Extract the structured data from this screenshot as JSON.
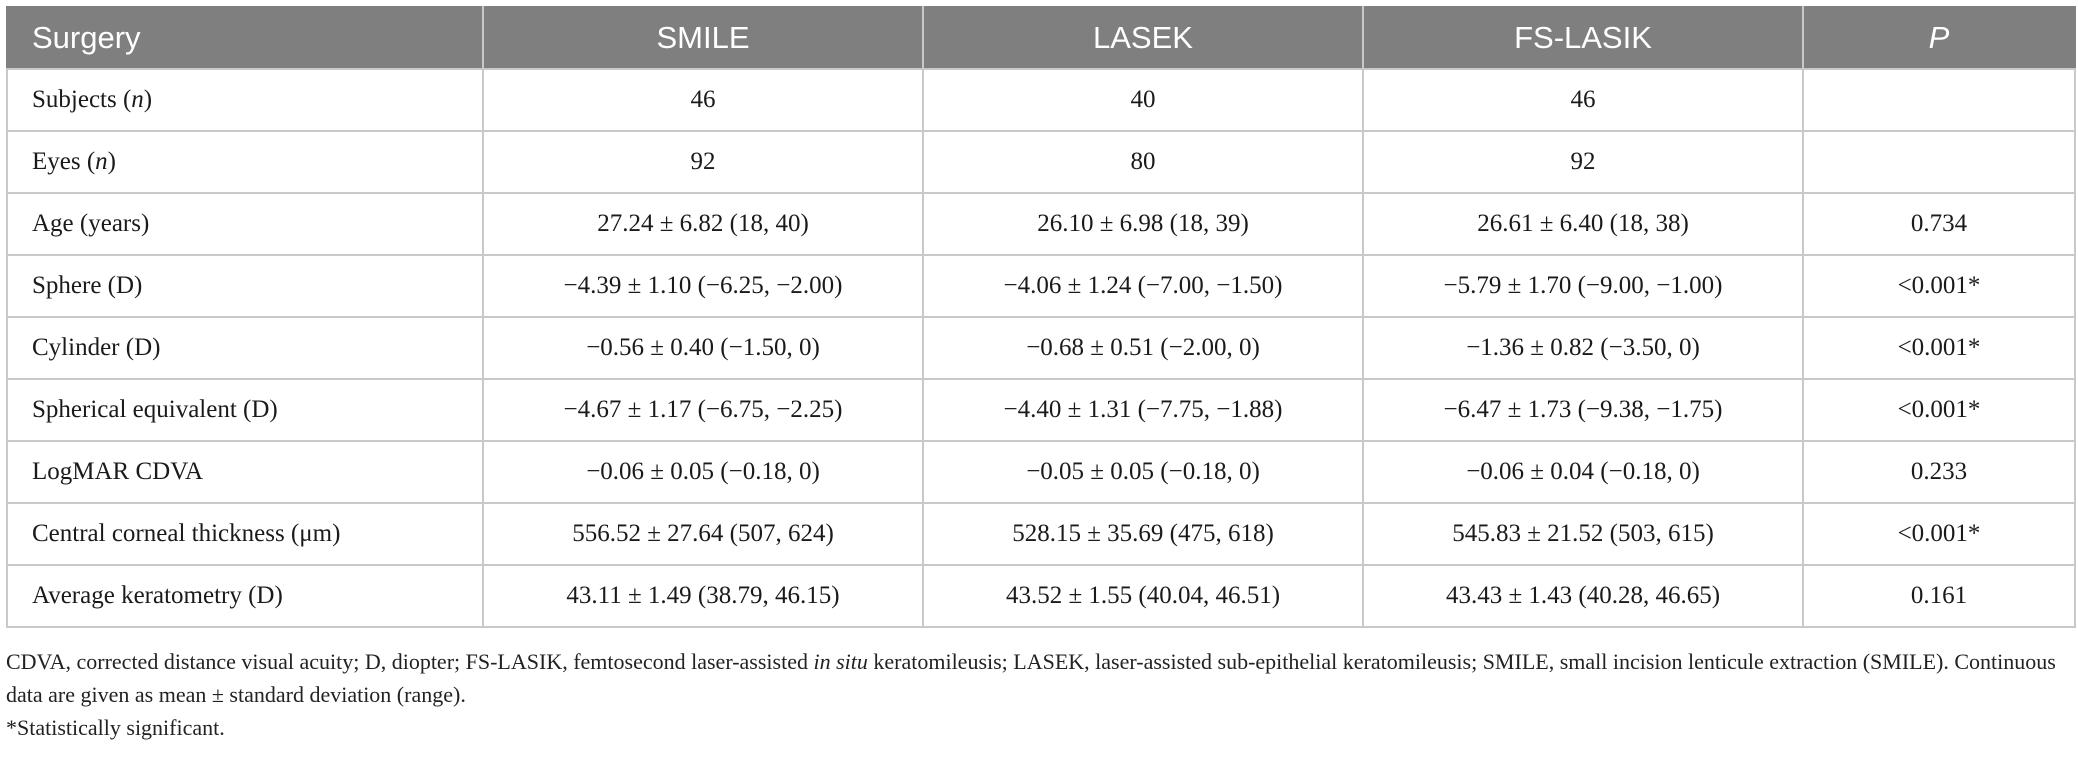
{
  "table": {
    "headers": [
      "Surgery",
      "SMILE",
      "LASEK",
      "FS-LASIK",
      "P"
    ],
    "rows": [
      {
        "label_main": "Subjects (",
        "label_italic": "n",
        "label_tail": ")",
        "cells": [
          "46",
          "40",
          "46",
          ""
        ]
      },
      {
        "label_main": "Eyes (",
        "label_italic": "n",
        "label_tail": ")",
        "cells": [
          "92",
          "80",
          "92",
          ""
        ]
      },
      {
        "label_main": "Age (years)",
        "label_italic": "",
        "label_tail": "",
        "cells": [
          "27.24 ± 6.82 (18, 40)",
          "26.10 ± 6.98 (18, 39)",
          "26.61 ± 6.40 (18, 38)",
          "0.734"
        ]
      },
      {
        "label_main": "Sphere (D)",
        "label_italic": "",
        "label_tail": "",
        "cells": [
          "−4.39 ± 1.10 (−6.25, −2.00)",
          "−4.06 ± 1.24 (−7.00, −1.50)",
          "−5.79 ± 1.70 (−9.00, −1.00)",
          "<0.001*"
        ]
      },
      {
        "label_main": "Cylinder (D)",
        "label_italic": "",
        "label_tail": "",
        "cells": [
          "−0.56 ± 0.40 (−1.50, 0)",
          "−0.68 ± 0.51 (−2.00, 0)",
          "−1.36 ± 0.82 (−3.50, 0)",
          "<0.001*"
        ]
      },
      {
        "label_main": "Spherical equivalent (D)",
        "label_italic": "",
        "label_tail": "",
        "cells": [
          "−4.67 ± 1.17 (−6.75, −2.25)",
          "−4.40 ± 1.31 (−7.75, −1.88)",
          "−6.47 ± 1.73 (−9.38, −1.75)",
          "<0.001*"
        ]
      },
      {
        "label_main": "LogMAR CDVA",
        "label_italic": "",
        "label_tail": "",
        "cells": [
          "−0.06 ± 0.05 (−0.18, 0)",
          "−0.05 ± 0.05 (−0.18, 0)",
          "−0.06 ± 0.04 (−0.18, 0)",
          "0.233"
        ]
      },
      {
        "label_main": "Central corneal thickness (μm)",
        "label_italic": "",
        "label_tail": "",
        "cells": [
          "556.52 ± 27.64 (507, 624)",
          "528.15 ± 35.69 (475, 618)",
          "545.83 ± 21.52 (503, 615)",
          "<0.001*"
        ]
      },
      {
        "label_main": "Average keratometry (D)",
        "label_italic": "",
        "label_tail": "",
        "cells": [
          "43.11 ± 1.49 (38.79, 46.15)",
          "43.52 ± 1.55 (40.04, 46.51)",
          "43.43 ± 1.43 (40.28, 46.65)",
          "0.161"
        ]
      }
    ]
  },
  "footnote": {
    "part1": "CDVA, corrected distance visual acuity; D, diopter; FS-LASIK, femtosecond laser-assisted ",
    "italic": "in situ",
    "part2": " keratomileusis; LASEK, laser-assisted sub-epithelial keratomileusis; SMILE, small incision lenticule extraction (SMILE). Continuous data are given as mean ± standard deviation (range).",
    "significance": "*Statistically significant."
  },
  "colors": {
    "header_bg": "#7f7f7f",
    "header_text": "#ffffff",
    "grid_line": "#c9c9c9"
  }
}
